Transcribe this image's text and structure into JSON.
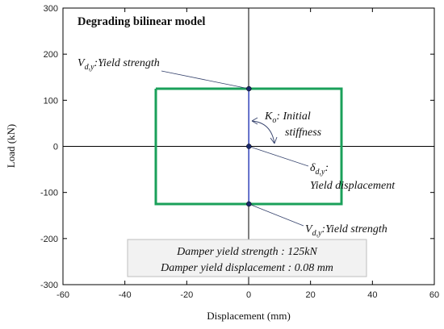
{
  "chart_data": {
    "type": "line",
    "title": "Degrading bilinear model",
    "xlabel": "Displacement (mm)",
    "ylabel": "Load (kN)",
    "xlim": [
      -60,
      60
    ],
    "ylim": [
      -300,
      300
    ],
    "x_ticks": [
      -60,
      -40,
      -20,
      0,
      20,
      40,
      60
    ],
    "y_ticks": [
      -300,
      -200,
      -100,
      0,
      100,
      200,
      300
    ],
    "x_tick_labels": [
      "-60",
      "-40",
      "-20",
      "0",
      "20",
      "40",
      "60"
    ],
    "y_tick_labels": [
      "-300",
      "-200",
      "-100",
      "0",
      "100",
      "200",
      "300"
    ],
    "grid": false,
    "series": [
      {
        "color": "#1aa05a",
        "x": [
          -30,
          30,
          30,
          -30,
          -30
        ],
        "y": [
          125,
          125,
          -125,
          -125,
          125
        ]
      },
      {
        "color": "#2a3fd6",
        "x": [
          0.08,
          0.08
        ],
        "y": [
          125,
          -125
        ]
      }
    ],
    "points": [
      {
        "x": 0.08,
        "y": 125
      },
      {
        "x": 0.08,
        "y": 0
      },
      {
        "x": 0.08,
        "y": -125
      }
    ],
    "annotations": {
      "vdy_top": {
        "symbol": "V",
        "sub": "d,y",
        "text": ":Yield strength"
      },
      "ko": {
        "symbol": "K",
        "sub": "o",
        "text": ": Initial",
        "line2": "stiffness"
      },
      "delta": {
        "symbol": "δ",
        "sub": "d,y",
        "text": ":",
        "line2": "Yield displacement"
      },
      "vdy_bottom": {
        "symbol": "V",
        "sub": "d,y",
        "text": ":Yield strength"
      }
    },
    "info_box": {
      "line1": "Damper yield strength : 125kN",
      "line2": "Damper yield displacement : 0.08 mm"
    },
    "colors": {
      "envelope": "#1aa05a",
      "elastic": "#2a3fd6",
      "points": "#1a2a6c",
      "leader": "#33406b"
    }
  }
}
